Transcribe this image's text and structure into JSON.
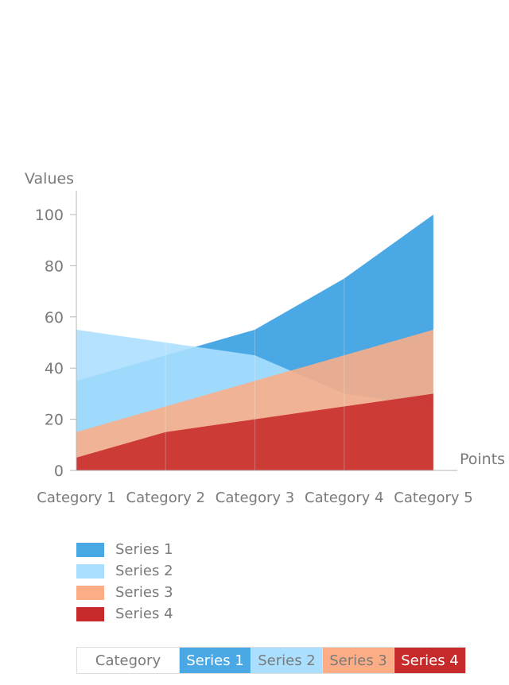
{
  "chart_data": {
    "type": "area",
    "title": "",
    "xlabel": "Points",
    "ylabel": "Values",
    "ylim": [
      0,
      100
    ],
    "yticks": [
      0,
      20,
      40,
      60,
      80,
      100
    ],
    "categories": [
      "Category 1",
      "Category 2",
      "Category 3",
      "Category 4",
      "Category 5"
    ],
    "series": [
      {
        "name": "Series 1",
        "color": "#4AA8E4",
        "text_color": "#ffffff",
        "values": [
          35,
          45,
          55,
          75,
          100
        ]
      },
      {
        "name": "Series 2",
        "color": "#ABDFFF",
        "text_color": "#7a7a7a",
        "values": [
          55,
          50,
          45,
          30,
          25
        ]
      },
      {
        "name": "Series 3",
        "color": "#FDAD86",
        "text_color": "#7a7a7a",
        "values": [
          15,
          25,
          35,
          45,
          55
        ]
      },
      {
        "name": "Series 4",
        "color": "#C72A2A",
        "text_color": "#ffffff",
        "values": [
          5,
          15,
          20,
          25,
          30
        ]
      }
    ],
    "legend": "bottom-left",
    "grid": false
  },
  "table": {
    "header_category": "Category"
  }
}
